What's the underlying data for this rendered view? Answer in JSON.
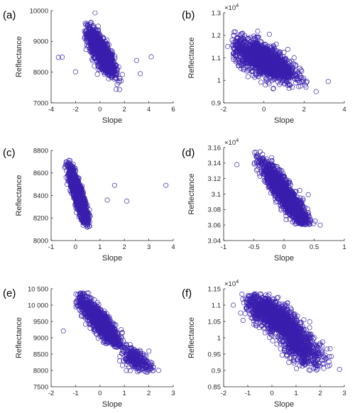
{
  "figure": {
    "marker_color": "#3a1fae"
  },
  "chart_data": [
    {
      "type": "scatter",
      "panel": "(a)",
      "xlabel": "Slope",
      "ylabel": "Reflectance",
      "multiplier": "",
      "xlim": [
        -4,
        6
      ],
      "ylim": [
        7000,
        10000
      ],
      "xticks": [
        -4,
        -2,
        0,
        2,
        4,
        6
      ],
      "xtick_labels": [
        "-4",
        "-2",
        "0",
        "2",
        "4",
        "6"
      ],
      "yticks": [
        7000,
        8000,
        9000,
        10000
      ],
      "ytick_labels": [
        "7000",
        "8000",
        "9000",
        "10000"
      ],
      "cluster": {
        "x_center": 0.1,
        "y_center": 8650,
        "slope": -520,
        "x_sd": 0.55,
        "y_sd": 220,
        "n": 1400,
        "x_min": -1.3,
        "x_max": 1.9,
        "y_min": 7380,
        "y_max": 9900
      },
      "outliers": [
        [
          -3.4,
          8480
        ],
        [
          -3.1,
          8490
        ],
        [
          -2.0,
          8010
        ],
        [
          -1.2,
          9590
        ],
        [
          -0.4,
          9930
        ],
        [
          3.0,
          8380
        ],
        [
          3.3,
          7950
        ],
        [
          4.2,
          8500
        ]
      ]
    },
    {
      "type": "scatter",
      "panel": "(b)",
      "xlabel": "Slope",
      "ylabel": "Reflectance",
      "multiplier": "×10^4",
      "xlim": [
        -2,
        4
      ],
      "ylim": [
        0.9,
        1.3
      ],
      "xticks": [
        -2,
        0,
        2,
        4
      ],
      "xtick_labels": [
        "-2",
        "0",
        "2",
        "4"
      ],
      "yticks": [
        0.9,
        1.0,
        1.1,
        1.2,
        1.3
      ],
      "ytick_labels": [
        "0.9",
        "1",
        "1.1",
        "1.2",
        "1.3"
      ],
      "cluster": {
        "x_center": 0.0,
        "y_center": 1.09,
        "slope": -0.04,
        "x_sd": 0.75,
        "y_sd": 0.035,
        "n": 1500,
        "x_min": -1.6,
        "x_max": 2.6,
        "y_min": 0.96,
        "y_max": 1.225
      },
      "outliers": [
        [
          -1.8,
          1.15
        ],
        [
          -1.5,
          1.2
        ],
        [
          3.2,
          0.995
        ],
        [
          2.6,
          0.95
        ]
      ]
    },
    {
      "type": "scatter",
      "panel": "(c)",
      "xlabel": "Slope",
      "ylabel": "Reflectance",
      "multiplier": "",
      "xlim": [
        -1,
        4
      ],
      "ylim": [
        8000,
        8800
      ],
      "xticks": [
        -1,
        0,
        1,
        2,
        3,
        4
      ],
      "xtick_labels": [
        "-1",
        "0",
        "1",
        "2",
        "3",
        "4"
      ],
      "yticks": [
        8000,
        8200,
        8400,
        8600,
        8800
      ],
      "ytick_labels": [
        "8000",
        "8200",
        "8400",
        "8600",
        "8800"
      ],
      "cluster": {
        "x_center": 0.1,
        "y_center": 8410,
        "slope": -560,
        "x_sd": 0.2,
        "y_sd": 60,
        "n": 1300,
        "x_min": -0.45,
        "x_max": 0.6,
        "y_min": 8110,
        "y_max": 8720
      },
      "outliers": [
        [
          1.3,
          8360
        ],
        [
          1.6,
          8490
        ],
        [
          2.1,
          8350
        ],
        [
          3.7,
          8490
        ]
      ]
    },
    {
      "type": "scatter",
      "panel": "(d)",
      "xlabel": "Slope",
      "ylabel": "Reflectance",
      "multiplier": "×10^4",
      "xlim": [
        -1,
        1
      ],
      "ylim": [
        3.04,
        3.16
      ],
      "xticks": [
        -1,
        -0.5,
        0,
        0.5,
        1
      ],
      "xtick_labels": [
        "-1",
        "-0.5",
        "0",
        "0.5",
        "1"
      ],
      "yticks": [
        3.04,
        3.06,
        3.08,
        3.1,
        3.12,
        3.14,
        3.16
      ],
      "ytick_labels": [
        "3.04",
        "3.06",
        "3.08",
        "3.1",
        "3.12",
        "3.14",
        "3.16"
      ],
      "cluster": {
        "x_center": 0.02,
        "y_center": 3.099,
        "slope": -0.1,
        "x_sd": 0.2,
        "y_sd": 0.009,
        "n": 1600,
        "x_min": -0.5,
        "x_max": 0.62,
        "y_min": 3.06,
        "y_max": 3.155
      },
      "outliers": [
        [
          -0.78,
          3.138
        ],
        [
          0.6,
          3.06
        ]
      ]
    },
    {
      "type": "scatter",
      "panel": "(e)",
      "xlabel": "Slope",
      "ylabel": "Reflectance",
      "multiplier": "",
      "xlim": [
        -2,
        3
      ],
      "ylim": [
        7500,
        10500
      ],
      "xticks": [
        -2,
        -1,
        0,
        1,
        2,
        3
      ],
      "xtick_labels": [
        "-2",
        "-1",
        "0",
        "1",
        "2",
        "3"
      ],
      "yticks": [
        7500,
        8000,
        8500,
        9000,
        9500,
        10000,
        10500
      ],
      "ytick_labels": [
        "7500",
        "8000",
        "8500",
        "9000",
        "9500",
        "10 000",
        "10 500"
      ],
      "cluster": {
        "x_center": 0.0,
        "y_center": 9480,
        "slope": -820,
        "x_sd": 0.45,
        "y_sd": 200,
        "n": 1100,
        "x_min": -1.0,
        "x_max": 1.1,
        "y_min": 8700,
        "y_max": 10380
      },
      "cluster2": {
        "x_center": 1.45,
        "y_center": 8350,
        "slope": -350,
        "x_sd": 0.35,
        "y_sd": 160,
        "n": 250,
        "x_min": 0.8,
        "x_max": 2.25,
        "y_min": 7950,
        "y_max": 8850
      },
      "outliers": [
        [
          -1.5,
          9210
        ],
        [
          2.4,
          8000
        ],
        [
          1.9,
          8120
        ]
      ]
    },
    {
      "type": "scatter",
      "panel": "(f)",
      "xlabel": "Slope",
      "ylabel": "Reflectance",
      "multiplier": "×10^4",
      "xlim": [
        -2,
        3
      ],
      "ylim": [
        0.85,
        1.15
      ],
      "xticks": [
        -2,
        -1,
        0,
        1,
        2,
        3
      ],
      "xtick_labels": [
        "-2",
        "-1",
        "0",
        "1",
        "2",
        "3"
      ],
      "yticks": [
        0.85,
        0.9,
        0.95,
        1.0,
        1.05,
        1.1,
        1.15
      ],
      "ytick_labels": [
        "0.85",
        "0.9",
        "0.95",
        "1",
        "1.05",
        "1.1",
        "1.15"
      ],
      "cluster": {
        "x_center": 0.15,
        "y_center": 1.06,
        "slope": -0.045,
        "x_sd": 0.6,
        "y_sd": 0.025,
        "n": 1300,
        "x_min": -1.3,
        "x_max": 1.6,
        "y_min": 0.96,
        "y_max": 1.135
      },
      "cluster2": {
        "x_center": 1.3,
        "y_center": 0.965,
        "slope": -0.03,
        "x_sd": 0.45,
        "y_sd": 0.025,
        "n": 450,
        "x_min": 0.3,
        "x_max": 2.5,
        "y_min": 0.9,
        "y_max": 1.04
      },
      "outliers": [
        [
          -1.6,
          1.1
        ],
        [
          2.8,
          0.903
        ],
        [
          -1.1,
          1.12
        ]
      ]
    }
  ]
}
